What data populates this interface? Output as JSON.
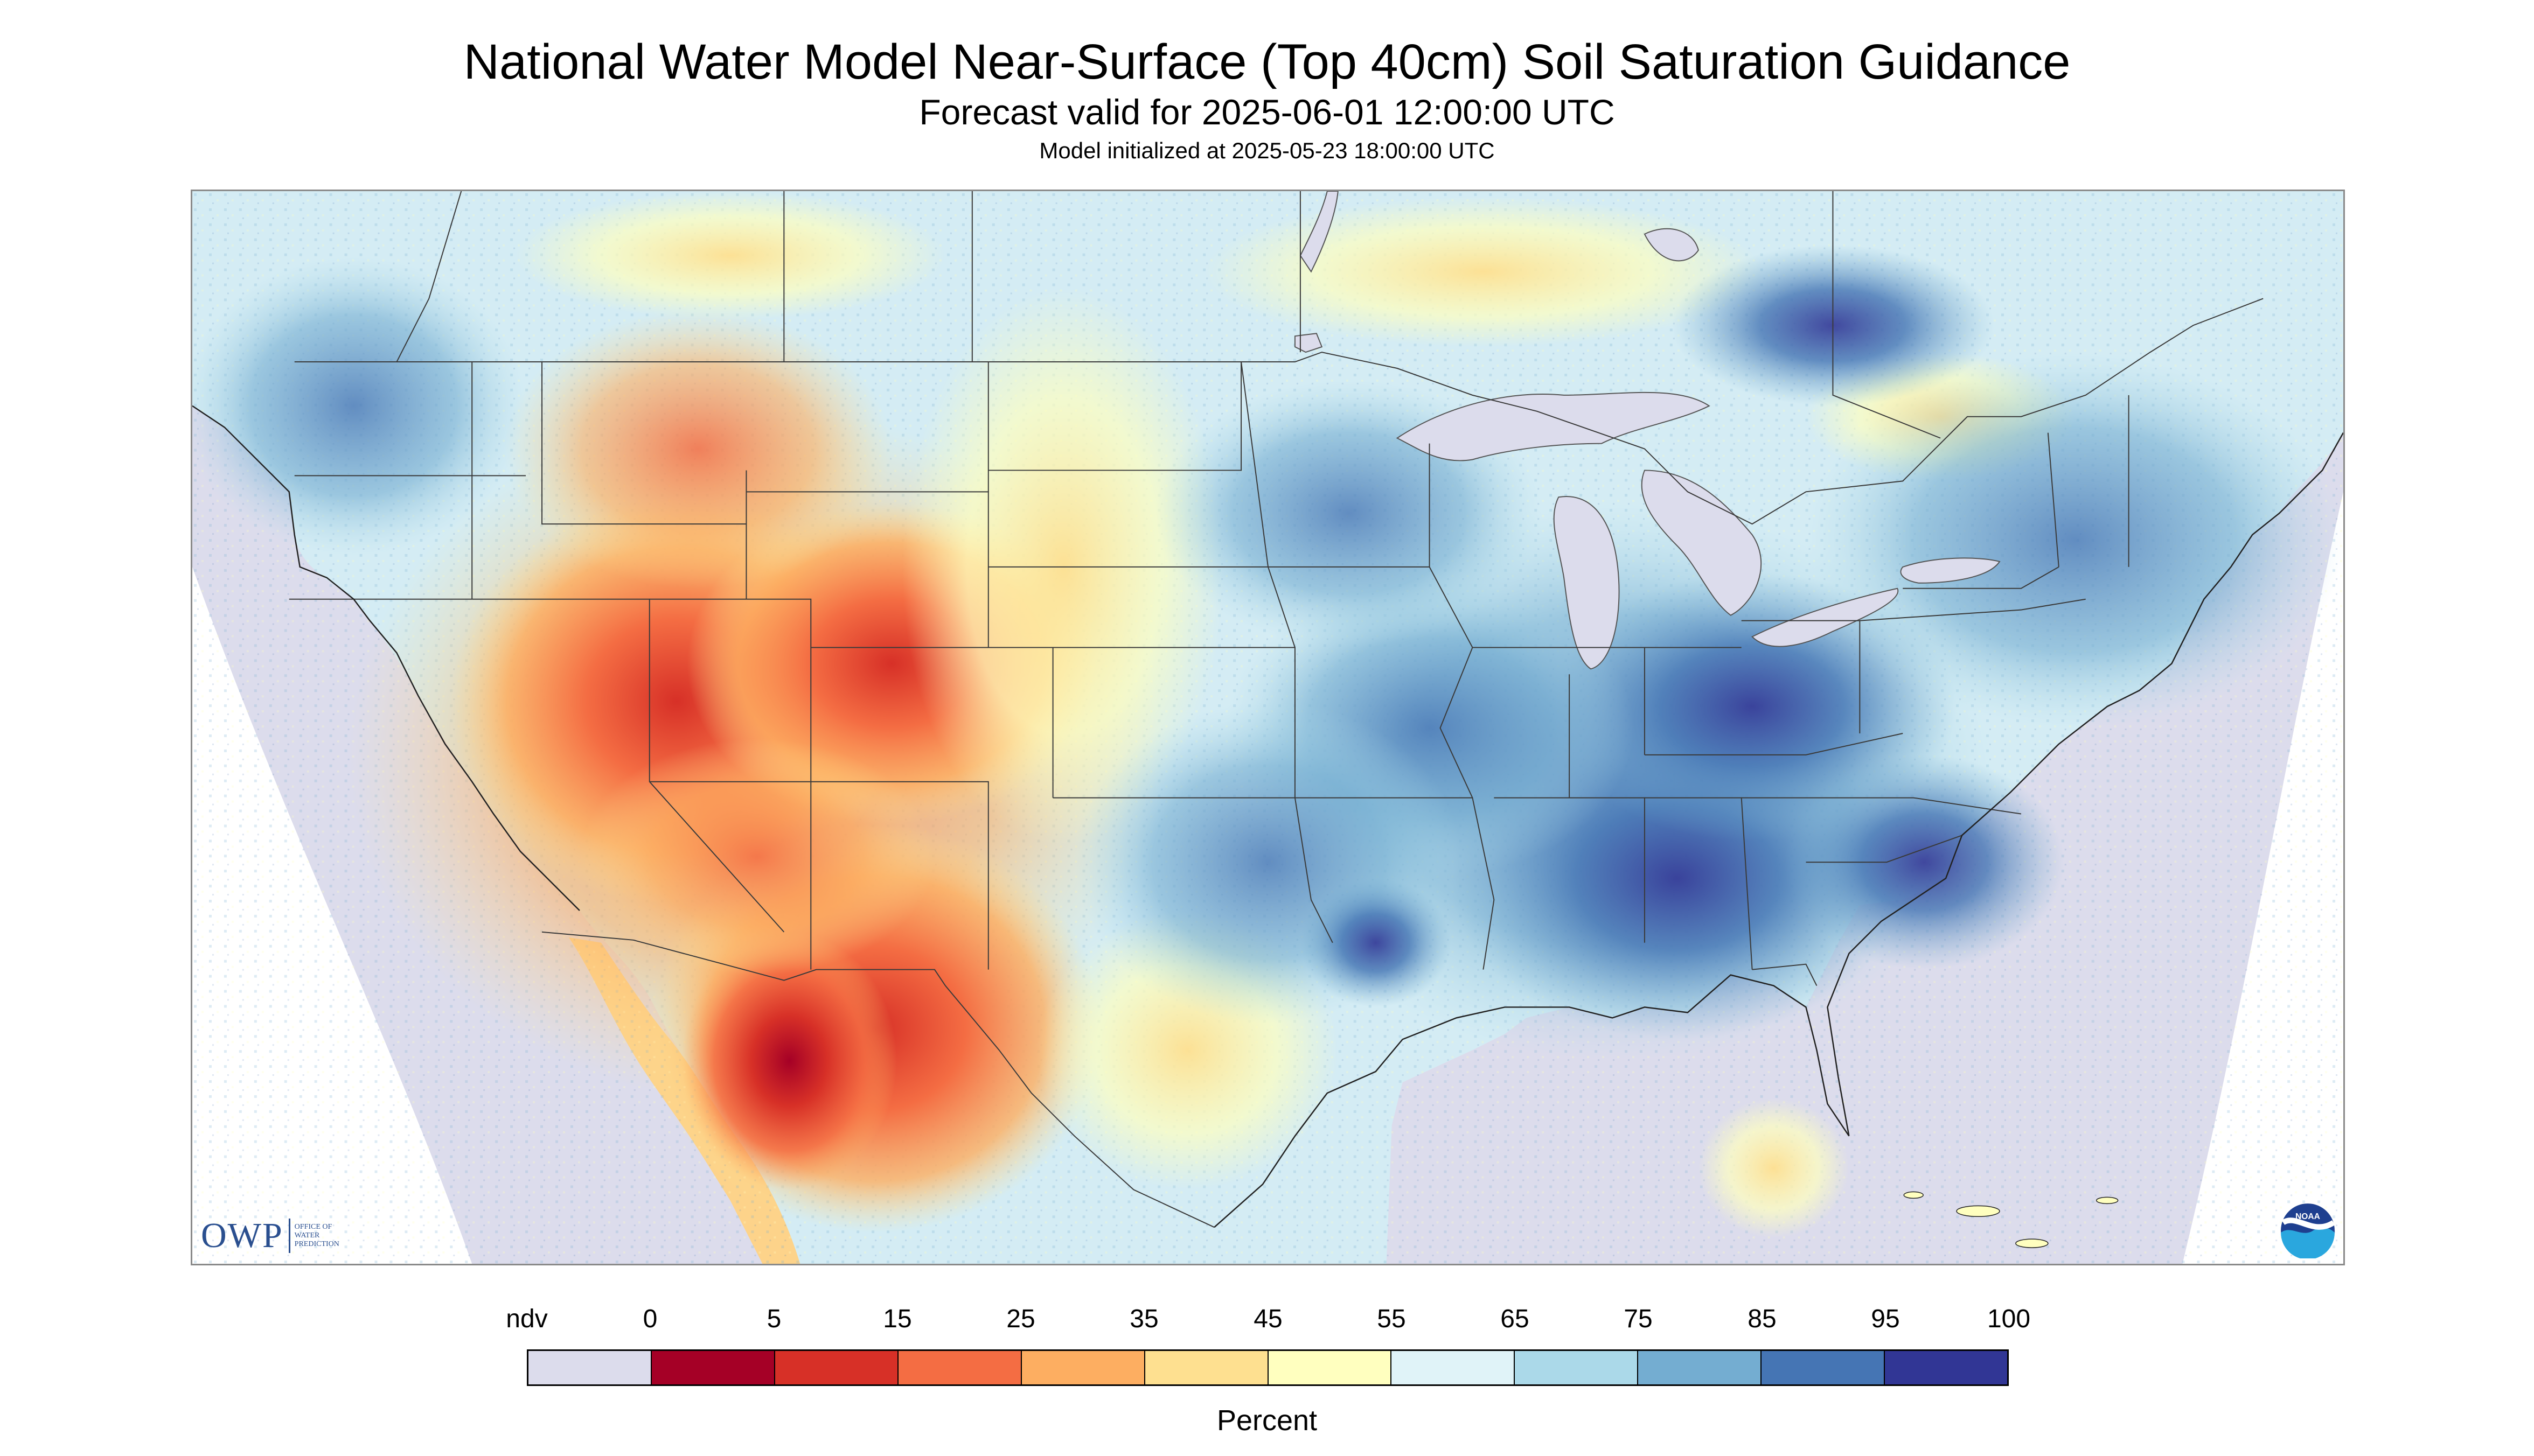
{
  "header": {
    "title": "National Water Model Near-Surface (Top 40cm) Soil Saturation Guidance",
    "subtitle": "Forecast valid for 2025-06-01 12:00:00 UTC",
    "init": "Model initialized at 2025-05-23 18:00:00 UTC"
  },
  "logos": {
    "owp": "OWP",
    "owp_sub": [
      "OFFICE OF",
      "WATER",
      "PREDICTION"
    ],
    "noaa": "NOAA"
  },
  "colors": {
    "nodata": "#dcdcec",
    "ocean": "#dcdcec",
    "lake": "#dcdcec",
    "border": "#3a3a3a"
  },
  "legend": {
    "title": "Percent",
    "labels": [
      "ndv",
      "0",
      "5",
      "15",
      "25",
      "35",
      "45",
      "55",
      "65",
      "75",
      "85",
      "95",
      "100"
    ],
    "bins": [
      {
        "label": "ndv",
        "color": "#dcdcec"
      },
      {
        "label": "0-5",
        "color": "#a50026"
      },
      {
        "label": "5-15",
        "color": "#d73027"
      },
      {
        "label": "15-25",
        "color": "#f46d43"
      },
      {
        "label": "25-35",
        "color": "#fdae61"
      },
      {
        "label": "35-45",
        "color": "#fee090"
      },
      {
        "label": "45-55",
        "color": "#ffffbf"
      },
      {
        "label": "55-65",
        "color": "#e0f3f8"
      },
      {
        "label": "65-75",
        "color": "#abd9e9"
      },
      {
        "label": "75-85",
        "color": "#74add1"
      },
      {
        "label": "85-95",
        "color": "#4575b4"
      },
      {
        "label": "95-100",
        "color": "#313695"
      }
    ]
  }
}
